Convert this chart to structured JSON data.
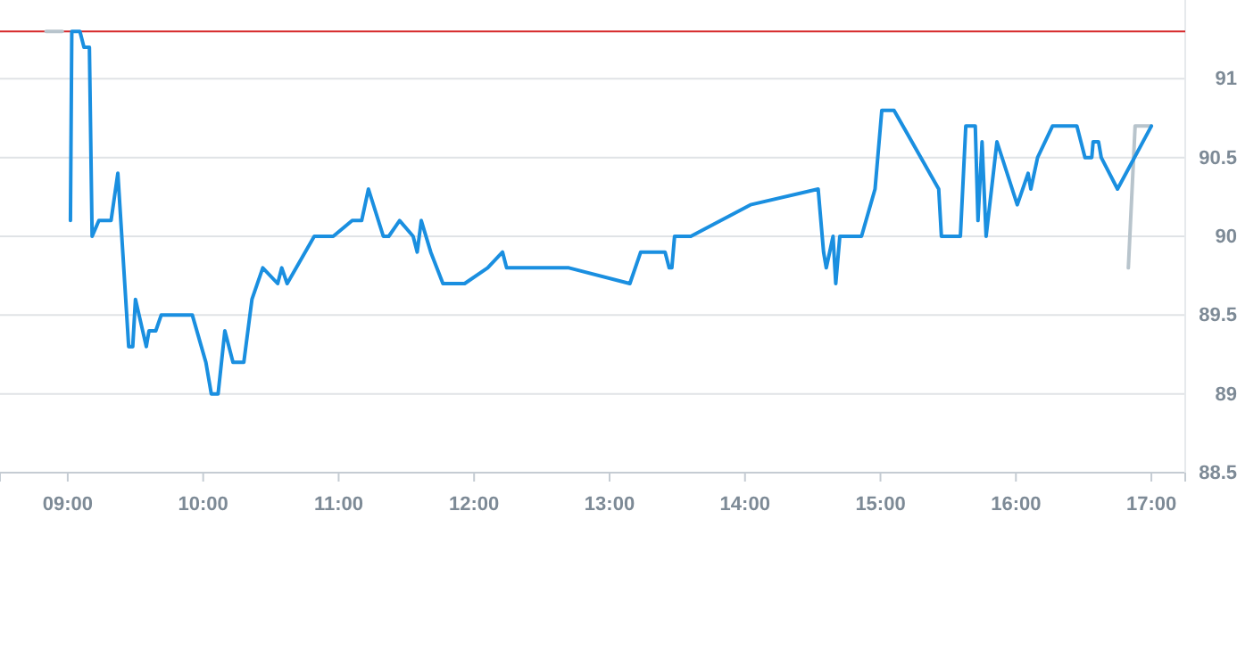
{
  "chart_data": {
    "type": "line",
    "xlim": [
      8.5,
      17.25
    ],
    "ylim": [
      88.5,
      91.5
    ],
    "xticks": [
      {
        "value": 9,
        "label": "09:00"
      },
      {
        "value": 10,
        "label": "10:00"
      },
      {
        "value": 11,
        "label": "11:00"
      },
      {
        "value": 12,
        "label": "12:00"
      },
      {
        "value": 13,
        "label": "13:00"
      },
      {
        "value": 14,
        "label": "14:00"
      },
      {
        "value": 15,
        "label": "15:00"
      },
      {
        "value": 16,
        "label": "16:00"
      },
      {
        "value": 17,
        "label": "17:00"
      }
    ],
    "yticks": [
      88.5,
      89,
      89.5,
      90,
      90.5,
      91
    ],
    "grid": "y",
    "marker": "none",
    "line_style": "solid",
    "ref_lines": [
      {
        "axis": "y",
        "value": 91.3,
        "color": "#d62728"
      }
    ],
    "series": [
      {
        "color": "#b8c4cc",
        "x": [
          8.84,
          8.96,
          12,
          16.83,
          16.88,
          17.0
        ],
        "values": [
          91.3,
          91.3,
          null,
          89.8,
          90.7,
          90.7
        ]
      },
      {
        "color": "#1a8fe0",
        "x": [
          9.02,
          9.03,
          9.09,
          9.12,
          9.16,
          9.18,
          9.23,
          9.32,
          9.37,
          9.45,
          9.48,
          9.5,
          9.58,
          9.6,
          9.65,
          9.69,
          9.92,
          10.02,
          10.06,
          10.11,
          10.16,
          10.22,
          10.3,
          10.36,
          10.44,
          10.55,
          10.58,
          10.62,
          10.82,
          10.96,
          11.1,
          11.17,
          11.22,
          11.33,
          11.37,
          11.45,
          11.55,
          11.58,
          11.61,
          11.68,
          11.77,
          11.93,
          12.1,
          12.21,
          12.24,
          12.7,
          13.15,
          13.23,
          13.41,
          13.44,
          13.46,
          13.48,
          13.6,
          14.04,
          14.54,
          14.58,
          14.6,
          14.65,
          14.67,
          14.7,
          14.86,
          14.96,
          15.01,
          15.1,
          15.43,
          15.45,
          15.59,
          15.63,
          15.7,
          15.72,
          15.75,
          15.78,
          15.86,
          16.01,
          16.09,
          16.11,
          16.16,
          16.27,
          16.45,
          16.51,
          16.56,
          16.57,
          16.61,
          16.63,
          16.75,
          17.0
        ],
        "values": [
          90.1,
          91.3,
          91.3,
          91.2,
          91.2,
          90.0,
          90.1,
          90.1,
          90.4,
          89.3,
          89.3,
          89.6,
          89.3,
          89.4,
          89.4,
          89.5,
          89.5,
          89.2,
          89.0,
          89.0,
          89.4,
          89.2,
          89.2,
          89.6,
          89.8,
          89.7,
          89.8,
          89.7,
          90.0,
          90.0,
          90.1,
          90.1,
          90.3,
          90.0,
          90.0,
          90.1,
          90.0,
          89.9,
          90.1,
          89.9,
          89.7,
          89.7,
          89.8,
          89.9,
          89.8,
          89.8,
          89.7,
          89.9,
          89.9,
          89.8,
          89.8,
          90.0,
          90.0,
          90.2,
          90.3,
          89.9,
          89.8,
          90.0,
          89.7,
          90.0,
          90.0,
          90.3,
          90.8,
          90.8,
          90.3,
          90.0,
          90.0,
          90.7,
          90.7,
          90.1,
          90.6,
          90.0,
          90.6,
          90.2,
          90.4,
          90.3,
          90.5,
          90.7,
          90.7,
          90.5,
          90.5,
          90.6,
          90.6,
          90.5,
          90.3,
          90.7
        ]
      }
    ]
  }
}
